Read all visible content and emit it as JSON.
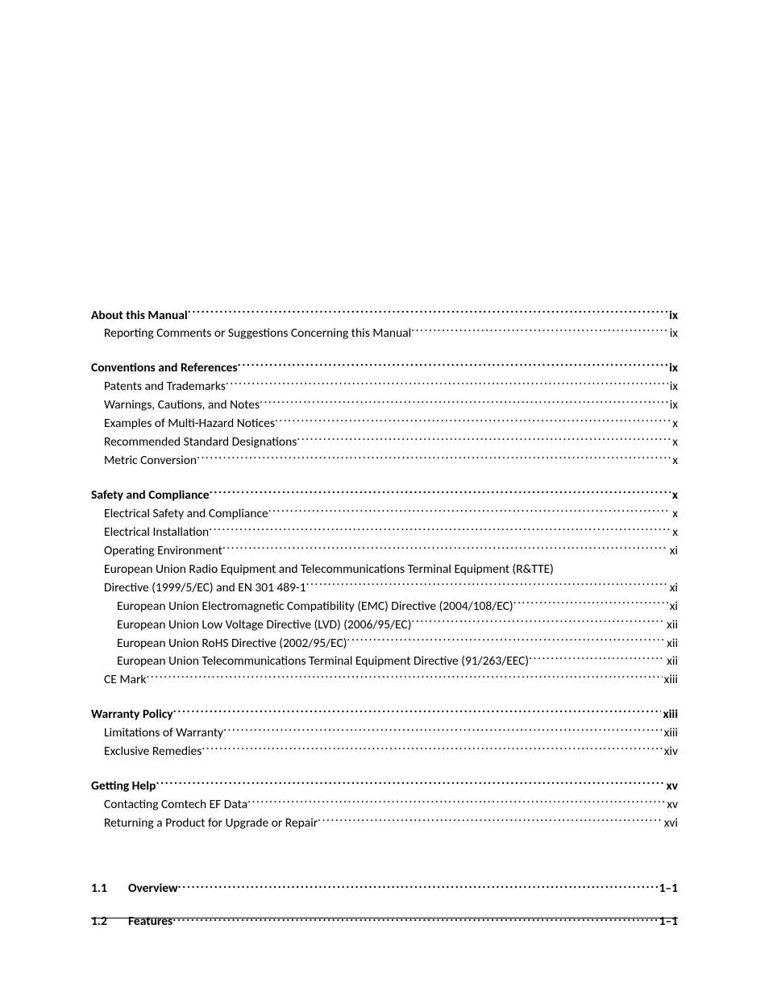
{
  "sections": [
    {
      "gap": "none",
      "heading": {
        "title": "About this Manual",
        "page": "ix"
      },
      "items": [
        {
          "indent": 1,
          "title": "Reporting Comments or Suggestions Concerning this Manual",
          "page": "ix"
        }
      ]
    },
    {
      "gap": "before",
      "heading": {
        "title": "Conventions and References",
        "page": "ix"
      },
      "items": [
        {
          "indent": 1,
          "title": "Patents and Trademarks",
          "page": "ix"
        },
        {
          "indent": 1,
          "title": "Warnings, Cautions, and Notes",
          "page": "ix"
        },
        {
          "indent": 1,
          "title": "Examples of Multi-Hazard Notices",
          "page": "x"
        },
        {
          "indent": 1,
          "title": "Recommended Standard Designations",
          "page": "x"
        },
        {
          "indent": 1,
          "title": "Metric Conversion",
          "page": "x"
        }
      ]
    },
    {
      "gap": "before",
      "heading": {
        "title": "Safety and Compliance",
        "page": "x"
      },
      "items": [
        {
          "indent": 1,
          "title": "Electrical Safety and Compliance",
          "page": "x"
        },
        {
          "indent": 1,
          "title": "Electrical Installation",
          "page": "x"
        },
        {
          "indent": 1,
          "title": "Operating Environment",
          "page": "xi"
        },
        {
          "indent": 1,
          "title_lines": [
            "European Union Radio Equipment and Telecommunications Terminal Equipment (R&TTE)",
            "Directive (1999/5/EC) and EN 301 489-1"
          ],
          "page": "xi"
        },
        {
          "indent": 2,
          "title": "European Union Electromagnetic Compatibility (EMC) Directive (2004/108/EC)",
          "page": "xi"
        },
        {
          "indent": 2,
          "title": "European Union Low Voltage Directive (LVD) (2006/95/EC)",
          "page": "xii"
        },
        {
          "indent": 2,
          "title": "European Union RoHS Directive (2002/95/EC)",
          "page": "xii"
        },
        {
          "indent": 2,
          "title": "European Union Telecommunications Terminal Equipment Directive (91/263/EEC)",
          "page": "xii"
        },
        {
          "indent": 1,
          "title": "CE Mark",
          "page": "xiii"
        }
      ]
    },
    {
      "gap": "before",
      "heading": {
        "title": "Warranty Policy",
        "page": "xiii"
      },
      "items": [
        {
          "indent": 1,
          "title": "Limitations of Warranty",
          "page": "xiii"
        },
        {
          "indent": 1,
          "title": "Exclusive Remedies",
          "page": "xiv"
        }
      ]
    },
    {
      "gap": "before",
      "heading": {
        "title": "Getting Help",
        "page": "xv"
      },
      "items": [
        {
          "indent": 1,
          "title": "Contacting Comtech EF Data",
          "page": "xv"
        },
        {
          "indent": 1,
          "title": "Returning a Product for Upgrade or Repair",
          "page": "xvi"
        }
      ]
    }
  ],
  "numbered": [
    {
      "num": "1.1",
      "title": "Overview",
      "page": "1–1"
    },
    {
      "num": "1.2",
      "title": "Features",
      "page": "1–1"
    }
  ]
}
